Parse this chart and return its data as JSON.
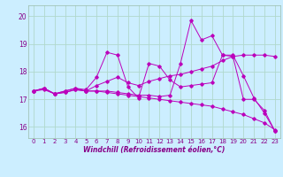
{
  "xlabel": "Windchill (Refroidissement éolien,°C)",
  "background_color": "#cceeff",
  "grid_color": "#b0d8cc",
  "line_color": "#bb00bb",
  "xlim": [
    -0.5,
    23.5
  ],
  "ylim": [
    15.6,
    20.4
  ],
  "xticks": [
    0,
    1,
    2,
    3,
    4,
    5,
    6,
    7,
    8,
    9,
    10,
    11,
    12,
    13,
    14,
    15,
    16,
    17,
    18,
    19,
    20,
    21,
    22,
    23
  ],
  "yticks": [
    16,
    17,
    18,
    19,
    20
  ],
  "series": [
    {
      "x": [
        0,
        1,
        2,
        3,
        4,
        5,
        6,
        7,
        8,
        9,
        10,
        11,
        12,
        13,
        14,
        15,
        16,
        17,
        18,
        19,
        20,
        21,
        22,
        23
      ],
      "y": [
        17.3,
        17.4,
        17.2,
        17.3,
        17.4,
        17.35,
        17.8,
        18.7,
        18.6,
        17.45,
        17.05,
        18.3,
        18.2,
        17.7,
        17.45,
        17.5,
        17.55,
        17.6,
        18.6,
        18.6,
        17.85,
        17.05,
        16.5,
        15.85
      ]
    },
    {
      "x": [
        0,
        1,
        2,
        3,
        4,
        5,
        6,
        7,
        8,
        9,
        10,
        11,
        12,
        13,
        14,
        15,
        16,
        17,
        18,
        19,
        20,
        21,
        22,
        23
      ],
      "y": [
        17.3,
        17.4,
        17.2,
        17.3,
        17.4,
        17.3,
        17.5,
        17.65,
        17.8,
        17.6,
        17.5,
        17.65,
        17.75,
        17.85,
        17.9,
        18.0,
        18.1,
        18.2,
        18.4,
        18.55,
        18.6,
        18.6,
        18.6,
        18.55
      ]
    },
    {
      "x": [
        0,
        1,
        2,
        3,
        4,
        5,
        6,
        7,
        8,
        9,
        10,
        11,
        12,
        13,
        14,
        15,
        16,
        17,
        18,
        19,
        20,
        21,
        22,
        23
      ],
      "y": [
        17.3,
        17.4,
        17.2,
        17.25,
        17.35,
        17.3,
        17.3,
        17.3,
        17.25,
        17.2,
        17.15,
        17.15,
        17.1,
        17.15,
        18.3,
        19.85,
        19.15,
        19.3,
        18.6,
        18.55,
        17.0,
        17.0,
        16.6,
        15.85
      ]
    },
    {
      "x": [
        0,
        1,
        2,
        3,
        4,
        5,
        6,
        7,
        8,
        9,
        10,
        11,
        12,
        13,
        14,
        15,
        16,
        17,
        18,
        19,
        20,
        21,
        22,
        23
      ],
      "y": [
        17.3,
        17.35,
        17.2,
        17.25,
        17.35,
        17.3,
        17.3,
        17.25,
        17.2,
        17.15,
        17.1,
        17.05,
        17.0,
        16.95,
        16.9,
        16.85,
        16.8,
        16.75,
        16.65,
        16.55,
        16.45,
        16.3,
        16.15,
        15.9
      ]
    }
  ]
}
